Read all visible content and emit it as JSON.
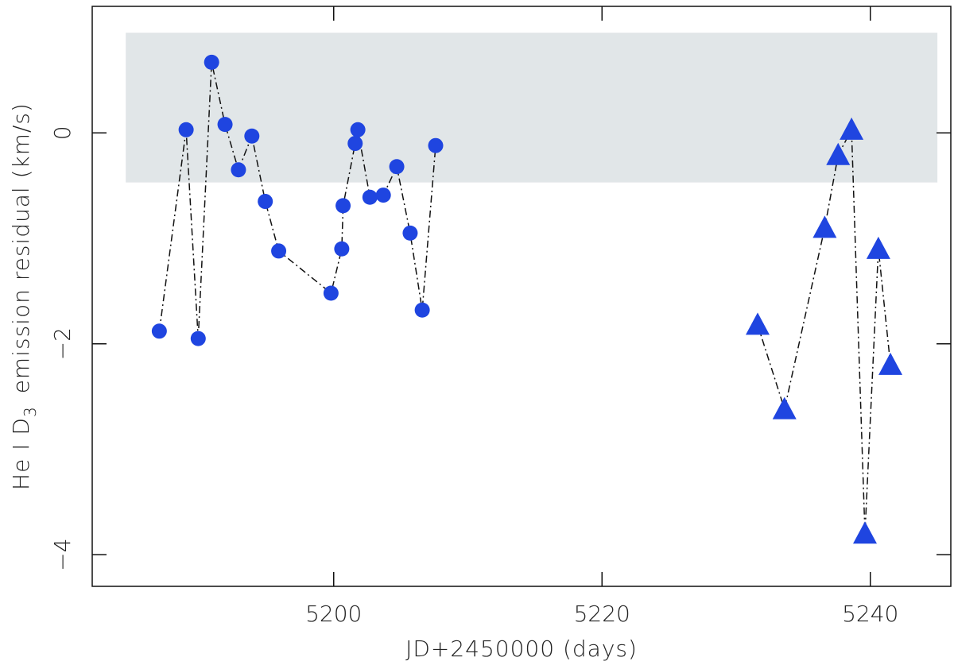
{
  "chart_data": {
    "type": "scatter",
    "xlabel": "JD+2450000 (days)",
    "ylabel": {
      "prefix": "He I D",
      "subscript": "3",
      "suffix": "emission residual (km/s)"
    },
    "xlim": [
      5182,
      5246
    ],
    "ylim": [
      -4.3,
      1.2
    ],
    "xticks": [
      5200,
      5220,
      5240
    ],
    "yticks": [
      0,
      -2,
      -4
    ],
    "ytick_labels": [
      "0",
      "−2",
      "−4"
    ],
    "shaded_band": {
      "y_min": -0.47,
      "y_max": 0.95,
      "x_min": 5184.5,
      "x_max": 5245,
      "color": "#e1e6e8"
    },
    "marker_color": "#1f45e0",
    "line_style": "dash-dot",
    "series": [
      {
        "marker": "circle",
        "points": [
          [
            5187.0,
            -1.88
          ],
          [
            5189.0,
            0.03
          ],
          [
            5189.9,
            -1.95
          ],
          [
            5190.9,
            0.67
          ],
          [
            5191.9,
            0.08
          ],
          [
            5192.9,
            -0.35
          ],
          [
            5193.9,
            -0.03
          ],
          [
            5194.9,
            -0.65
          ],
          [
            5195.9,
            -1.12
          ],
          [
            5199.8,
            -1.52
          ],
          [
            5200.6,
            -1.1
          ],
          [
            5200.7,
            -0.69
          ],
          [
            5201.6,
            -0.1
          ],
          [
            5201.8,
            0.03
          ],
          [
            5202.7,
            -0.61
          ],
          [
            5203.7,
            -0.59
          ],
          [
            5204.7,
            -0.32
          ],
          [
            5205.7,
            -0.95
          ],
          [
            5206.6,
            -1.68
          ],
          [
            5207.6,
            -0.12
          ]
        ]
      },
      {
        "marker": "triangle",
        "points": [
          [
            5231.6,
            -1.82
          ],
          [
            5233.6,
            -2.62
          ],
          [
            5236.6,
            -0.9
          ],
          [
            5237.6,
            -0.21
          ],
          [
            5238.6,
            0.03
          ],
          [
            5239.6,
            -3.8
          ],
          [
            5240.6,
            -1.1
          ],
          [
            5241.5,
            -2.2
          ]
        ]
      }
    ]
  }
}
